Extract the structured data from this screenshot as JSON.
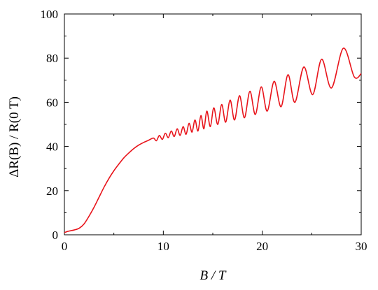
{
  "chart_data": {
    "type": "line",
    "title": "",
    "xlabel": "B / T",
    "ylabel": "ΔR(B) / R(0 T)",
    "xlim": [
      0,
      30
    ],
    "ylim": [
      0,
      100
    ],
    "x_ticks": [
      0,
      10,
      20,
      30
    ],
    "y_ticks": [
      0,
      20,
      40,
      60,
      80,
      100
    ],
    "x_tick_labels": [
      "0",
      "10",
      "20",
      "30"
    ],
    "y_tick_labels": [
      "0",
      "20",
      "40",
      "60",
      "80",
      "100"
    ],
    "grid": false,
    "legend": "none",
    "color": "#e8141b",
    "series": [
      {
        "x": [
          0,
          0.3,
          0.6,
          1,
          1.5,
          2,
          2.5,
          3,
          3.5,
          4,
          4.5,
          5,
          5.5,
          6,
          6.5,
          7,
          7.5,
          8,
          8.5,
          9,
          9.3,
          9.6,
          9.9,
          10.2,
          10.5,
          10.8,
          11.1,
          11.4,
          11.7,
          12.0,
          12.3,
          12.6,
          12.9,
          13.2,
          13.5,
          13.8,
          14.1,
          14.4,
          14.75,
          15.1,
          15.5,
          15.9,
          16.3,
          16.75,
          17.2,
          17.7,
          18.2,
          18.75,
          19.3,
          19.9,
          20.5,
          21.2,
          21.9,
          22.6,
          23.3,
          24.2,
          25.1,
          26.0,
          27.0,
          28.2,
          29.3,
          30.0
        ],
        "y": [
          1.0,
          1.5,
          1.8,
          2.2,
          3.0,
          5.0,
          8.5,
          12.5,
          17.0,
          21.5,
          25.5,
          29.0,
          32.0,
          34.8,
          37.0,
          39.0,
          40.6,
          41.8,
          42.8,
          43.8,
          42.6,
          45.0,
          43.2,
          46.0,
          44.0,
          47.0,
          44.5,
          48.0,
          45.0,
          49.0,
          45.5,
          50.5,
          46.5,
          52.0,
          47.0,
          54.0,
          48.0,
          56.0,
          49.0,
          57.5,
          50.0,
          59.0,
          51.0,
          61.0,
          52.0,
          63.0,
          53.0,
          65.0,
          54.5,
          67.0,
          56.0,
          69.5,
          58.0,
          72.5,
          60.0,
          76.0,
          63.5,
          79.5,
          66.5,
          84.5,
          71.5,
          73.0
        ]
      }
    ]
  }
}
